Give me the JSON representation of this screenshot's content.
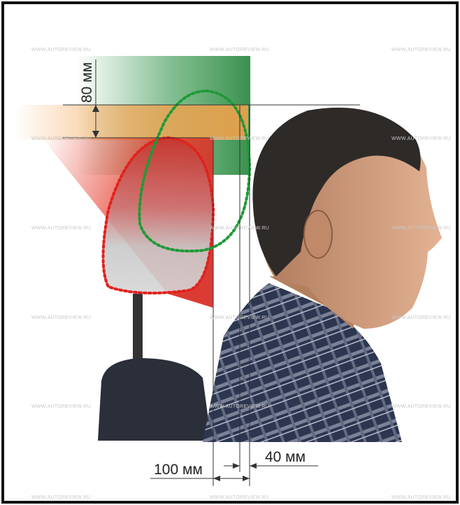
{
  "dimensions": {
    "vertical": "80 мм",
    "horizontal_total": "100 мм",
    "horizontal_offset": "40 мм"
  },
  "watermark": "WWW.AUTOREVIEW.RU"
}
